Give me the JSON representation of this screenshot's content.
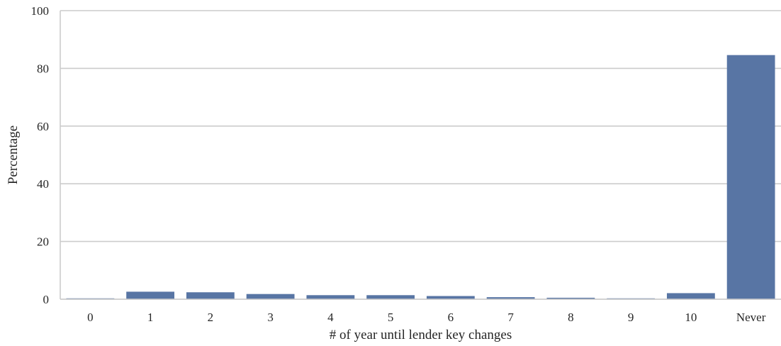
{
  "chart_data": {
    "type": "bar",
    "categories": [
      "0",
      "1",
      "2",
      "3",
      "4",
      "5",
      "6",
      "7",
      "8",
      "9",
      "10",
      "Never"
    ],
    "values": [
      0.3,
      2.6,
      2.4,
      1.8,
      1.4,
      1.4,
      1.1,
      0.7,
      0.5,
      0.3,
      2.1,
      84.6
    ],
    "xlabel": "# of year until lender key changes",
    "ylabel": "Percentage",
    "ylim": [
      0,
      100
    ],
    "yticks": [
      0,
      20,
      40,
      60,
      80,
      100
    ],
    "grid": true,
    "bar_color": "#5875a4",
    "grid_color": "#cccccc",
    "text_color": "#262626"
  }
}
